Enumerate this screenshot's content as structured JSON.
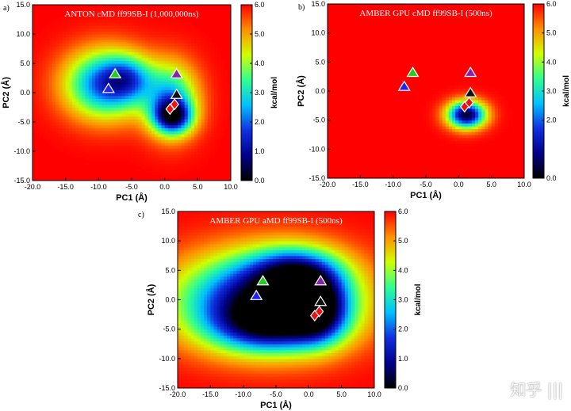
{
  "figure": {
    "watermark": "知乎 |||",
    "colormap": [
      "#000000",
      "#00008b",
      "#1030e0",
      "#00c0ff",
      "#30ff90",
      "#d0ff00",
      "#ff9000",
      "#ff0000"
    ]
  },
  "chart_data": [
    {
      "id": "a",
      "type": "heatmap",
      "panel_letter": "a)",
      "title": "ANTON cMD ff99SB-I (1,000,000ns)",
      "xlabel": "PC1 (Å)",
      "ylabel": "PC2 (Å)",
      "xlim": [
        -20,
        10
      ],
      "ylim": [
        -15,
        15
      ],
      "xticks": [
        "-20.0",
        "-15.0",
        "-10.0",
        "-5.0",
        "0.0",
        "5.0",
        "10.0"
      ],
      "xtick_values": [
        -20,
        -15,
        -10,
        -5,
        0,
        5,
        10
      ],
      "yticks": [
        "-15.0",
        "-10.0",
        "-5.0",
        "0.0",
        "5.0",
        "10.0",
        "15.0"
      ],
      "ytick_values": [
        -15,
        -10,
        -5,
        0,
        5,
        10,
        15
      ],
      "colorbar": {
        "label": "kcal/mol",
        "min": 0,
        "max": 6,
        "ticks": [
          "0.0",
          "1.0",
          "2.0",
          "3.0",
          "4.0",
          "5.0",
          "6.0"
        ],
        "tick_values": [
          0,
          1,
          2,
          3,
          4,
          5,
          6
        ]
      },
      "basins": [
        {
          "x": -9.0,
          "y": 1.5,
          "sx": 4.2,
          "sy": 4.0,
          "depth": 2.6
        },
        {
          "x": -5.5,
          "y": 2.5,
          "sx": 2.5,
          "sy": 2.6,
          "depth": 1.2
        },
        {
          "x": 1.0,
          "y": -1.0,
          "sx": 2.8,
          "sy": 4.2,
          "depth": 2.0
        },
        {
          "x": 1.2,
          "y": -4.0,
          "sx": 2.0,
          "sy": 2.0,
          "depth": 2.6
        }
      ],
      "markers": [
        {
          "label": "green triangle",
          "shape": "triangle",
          "color": "#22cc22",
          "x": -7.5,
          "y": 3.2
        },
        {
          "label": "blue triangle",
          "shape": "triangle",
          "color": "#2222ee",
          "x": -8.5,
          "y": 0.7
        },
        {
          "label": "purple triangle",
          "shape": "triangle",
          "color": "#8822aa",
          "x": 1.8,
          "y": 3.2
        },
        {
          "label": "black triangle",
          "shape": "triangle",
          "color": "#111111",
          "x": 1.8,
          "y": -0.3
        },
        {
          "label": "red diamond 1",
          "shape": "diamond",
          "color": "#ee1111",
          "x": 1.5,
          "y": -2.0
        },
        {
          "label": "red diamond 2",
          "shape": "diamond",
          "color": "#ee1111",
          "x": 0.8,
          "y": -2.8
        }
      ]
    },
    {
      "id": "b",
      "type": "heatmap",
      "panel_letter": "b)",
      "title": "AMBER GPU cMD ff99SB-I (500ns)",
      "xlabel": "PC1 (Å)",
      "ylabel": "PC2 (Å)",
      "xlim": [
        -20,
        10
      ],
      "ylim": [
        -15,
        15
      ],
      "xticks": [
        "-20.0",
        "-15.0",
        "-10.0",
        "-5.0",
        "0.0",
        "5.0",
        "10.0"
      ],
      "xtick_values": [
        -20,
        -15,
        -10,
        -5,
        0,
        5,
        10
      ],
      "yticks": [
        "-15.0",
        "-10.0",
        "-5.0",
        "0.0",
        "5.0",
        "10.0",
        "15.0"
      ],
      "ytick_values": [
        -15,
        -10,
        -5,
        0,
        5,
        10,
        15
      ],
      "colorbar": {
        "label": "kcal/mol",
        "min": 0,
        "max": 6,
        "ticks": [
          "0.0",
          "2.0",
          "3.0",
          "4.0",
          "5.0",
          "6.0"
        ],
        "tick_values": [
          0,
          2,
          3,
          4,
          5,
          6
        ]
      },
      "basins": [
        {
          "x": 1.2,
          "y": -4.0,
          "sx": 2.0,
          "sy": 1.6,
          "depth": 3.6
        }
      ],
      "markers": [
        {
          "label": "green triangle",
          "shape": "triangle",
          "color": "#22cc22",
          "x": -7.0,
          "y": 3.2
        },
        {
          "label": "blue triangle",
          "shape": "triangle",
          "color": "#2222ee",
          "x": -8.3,
          "y": 0.8
        },
        {
          "label": "purple triangle",
          "shape": "triangle",
          "color": "#8822aa",
          "x": 1.8,
          "y": 3.2
        },
        {
          "label": "black triangle",
          "shape": "triangle",
          "color": "#111111",
          "x": 1.8,
          "y": -0.3
        },
        {
          "label": "red diamond 1",
          "shape": "diamond",
          "color": "#ee1111",
          "x": 1.6,
          "y": -2.0
        },
        {
          "label": "red diamond 2",
          "shape": "diamond",
          "color": "#ee1111",
          "x": 0.9,
          "y": -2.7
        }
      ]
    },
    {
      "id": "c",
      "type": "heatmap",
      "panel_letter": "c)",
      "title": "AMBER GPU aMD ff99SB-I (500ns)",
      "xlabel": "PC1 (Å)",
      "ylabel": "PC2 (Å)",
      "xlim": [
        -20,
        10
      ],
      "ylim": [
        -15,
        15
      ],
      "xticks": [
        "-20.0",
        "-15.0",
        "-10.0",
        "-5.0",
        "0.0",
        "5.0",
        "10.0"
      ],
      "xtick_values": [
        -20,
        -15,
        -10,
        -5,
        0,
        5,
        10
      ],
      "yticks": [
        "-15.0",
        "-10.0",
        "-5.0",
        "0.0",
        "5.0",
        "10.0",
        "15.0"
      ],
      "ytick_values": [
        -15,
        -10,
        -5,
        0,
        5,
        10,
        15
      ],
      "colorbar": {
        "label": "kcal/mol",
        "min": 0,
        "max": 6,
        "ticks": [
          "0.0",
          "1.0",
          "2.0",
          "3.0",
          "4.0",
          "5.0",
          "6.0"
        ],
        "tick_values": [
          0,
          1,
          2,
          3,
          4,
          5,
          6
        ]
      },
      "basins": [
        {
          "x": -6.5,
          "y": 0.0,
          "sx": 9.0,
          "sy": 5.4,
          "depth": 3.6
        },
        {
          "x": -2.0,
          "y": 4.5,
          "sx": 4.5,
          "sy": 3.0,
          "depth": 2.0
        },
        {
          "x": 1.5,
          "y": -1.5,
          "sx": 3.0,
          "sy": 3.8,
          "depth": 2.2
        },
        {
          "x": -6.0,
          "y": -4.5,
          "sx": 6.0,
          "sy": 3.0,
          "depth": 1.8
        }
      ],
      "markers": [
        {
          "label": "green triangle",
          "shape": "triangle",
          "color": "#22cc22",
          "x": -7.0,
          "y": 3.2
        },
        {
          "label": "blue triangle",
          "shape": "triangle",
          "color": "#2222ee",
          "x": -8.0,
          "y": 0.7
        },
        {
          "label": "purple triangle",
          "shape": "triangle",
          "color": "#8822aa",
          "x": 1.8,
          "y": 3.2
        },
        {
          "label": "black triangle",
          "shape": "triangle",
          "color": "#111111",
          "x": 1.8,
          "y": -0.3
        },
        {
          "label": "red diamond 1",
          "shape": "diamond",
          "color": "#ee1111",
          "x": 1.6,
          "y": -2.0
        },
        {
          "label": "red diamond 2",
          "shape": "diamond",
          "color": "#ee1111",
          "x": 0.9,
          "y": -2.7
        }
      ]
    }
  ]
}
